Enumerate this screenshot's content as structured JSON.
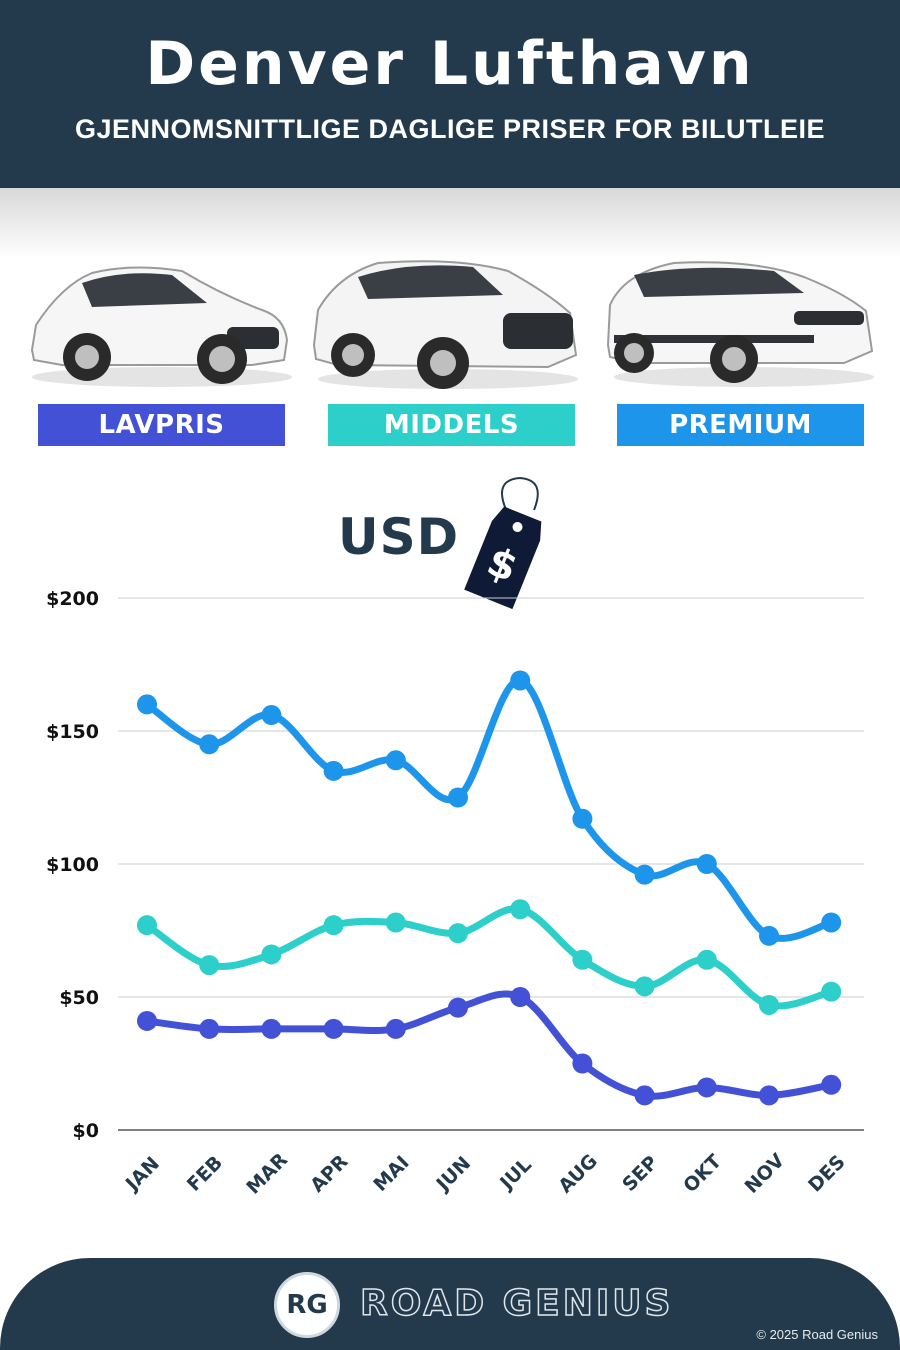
{
  "header": {
    "title": "Denver Lufthavn",
    "subtitle": "GJENNOMSNITTLIGE DAGLIGE PRISER FOR BILUTLEIE"
  },
  "categories": [
    {
      "label": "LAVPRIS",
      "color": "#4251d6",
      "icon": "hatchback-car-image"
    },
    {
      "label": "MIDDELS",
      "color": "#2ccfc9",
      "icon": "suv-car-image"
    },
    {
      "label": "PREMIUM",
      "color": "#1c95ea",
      "icon": "luxury-suv-car-image"
    }
  ],
  "currency_label": "USD",
  "price_tag_symbol": "$",
  "chart_data": {
    "type": "line",
    "title": "",
    "xlabel": "",
    "ylabel": "",
    "categories": [
      "JAN",
      "FEB",
      "MAR",
      "APR",
      "MAI",
      "JUN",
      "JUL",
      "AUG",
      "SEP",
      "OKT",
      "NOV",
      "DES"
    ],
    "ylim": [
      0,
      200
    ],
    "yticks": [
      0,
      50,
      100,
      150,
      200
    ],
    "ytick_labels": [
      "$0",
      "$50",
      "$100",
      "$150",
      "$200"
    ],
    "grid": true,
    "series": [
      {
        "name": "PREMIUM",
        "color": "#1c95ea",
        "values": [
          160,
          145,
          156,
          135,
          139,
          125,
          169,
          117,
          96,
          100,
          73,
          78
        ]
      },
      {
        "name": "MIDDELS",
        "color": "#2ccfc9",
        "values": [
          77,
          62,
          66,
          77,
          78,
          74,
          83,
          64,
          54,
          64,
          47,
          52
        ]
      },
      {
        "name": "LAVPRIS",
        "color": "#4251d6",
        "values": [
          41,
          38,
          38,
          38,
          38,
          46,
          50,
          25,
          13,
          16,
          13,
          17
        ]
      }
    ]
  },
  "footer": {
    "logo_text": "RG",
    "brand": "ROAD GENIUS",
    "copyright": "© 2025 Road Genius"
  }
}
